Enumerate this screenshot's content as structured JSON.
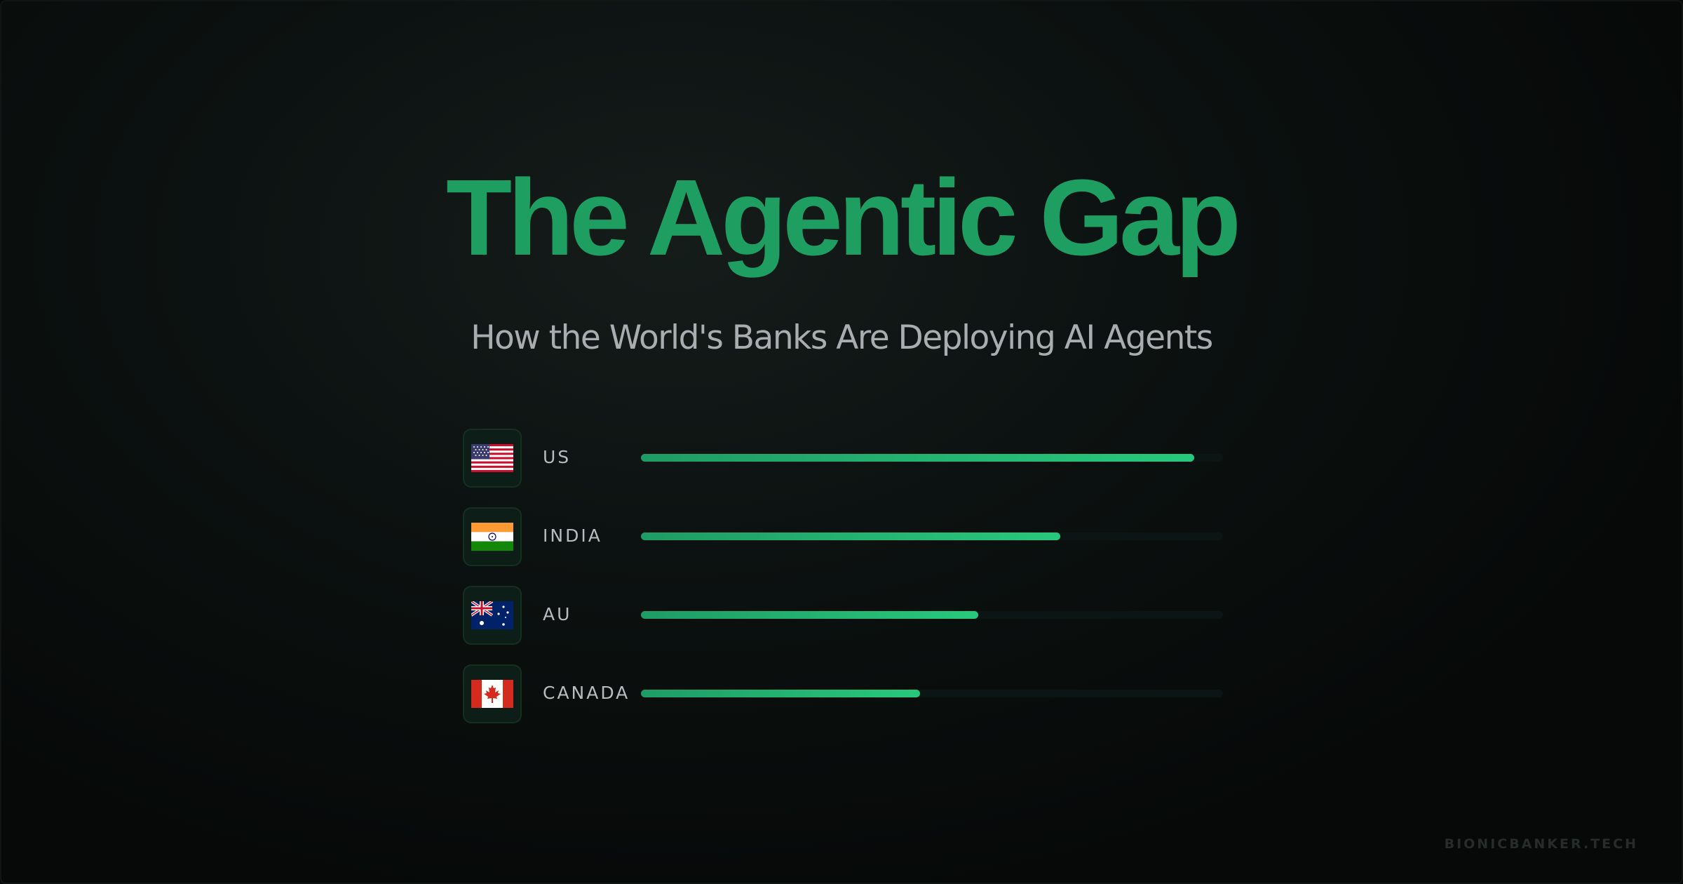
{
  "title": "The Agentic Gap",
  "subtitle": "How the World's Banks Are Deploying AI Agents",
  "footer": "BIONICBANKER.TECH",
  "colors": {
    "accent": "#1f9e62",
    "bar_fill_start": "#1e9c64",
    "bar_fill_end": "#27c97d",
    "track": "#0b1614",
    "background": "#0a0f0e"
  },
  "chart_data": {
    "type": "bar",
    "orientation": "horizontal",
    "title": "The Agentic Gap",
    "subtitle": "How the World's Banks Are Deploying AI Agents",
    "categories": [
      "US",
      "INDIA",
      "AU",
      "CANADA"
    ],
    "flags": [
      "us-flag-icon",
      "india-flag-icon",
      "australia-flag-icon",
      "canada-flag-icon"
    ],
    "values": [
      95,
      72,
      58,
      48
    ],
    "xlim": [
      0,
      100
    ],
    "grid": false,
    "legend": "none"
  }
}
